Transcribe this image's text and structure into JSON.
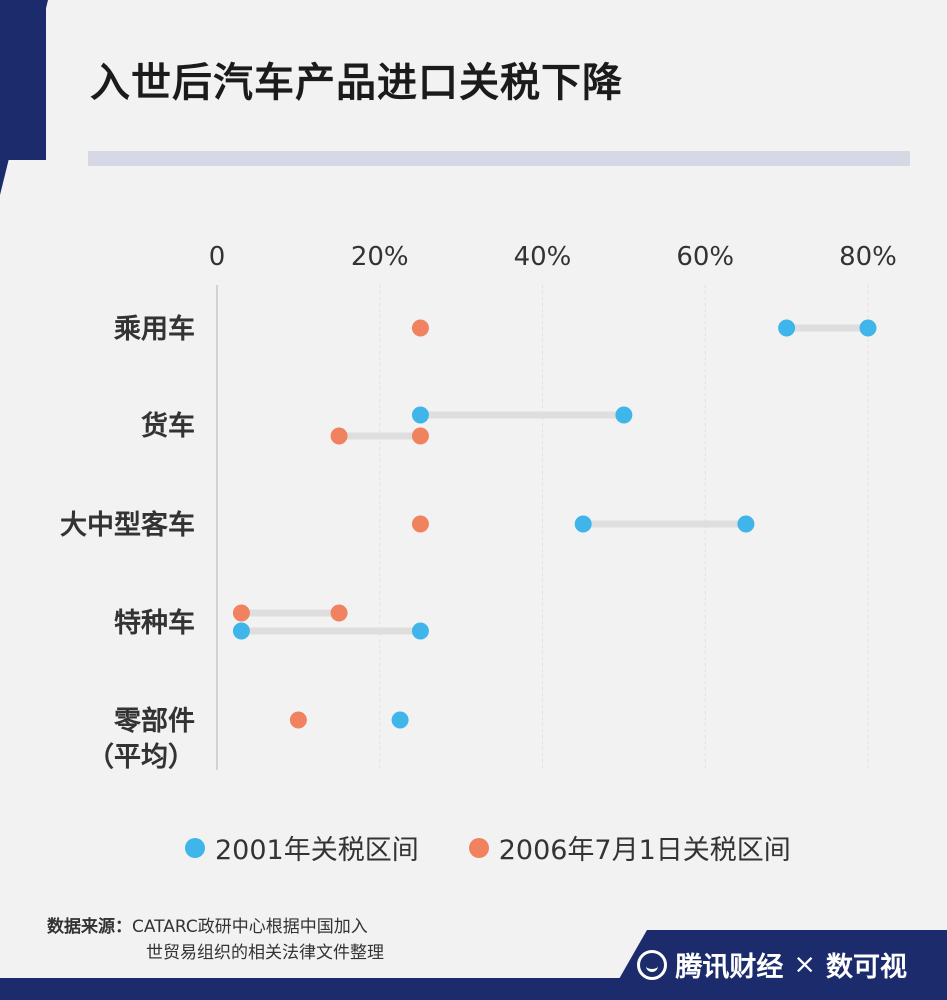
{
  "header": {
    "title": "入世后汽车产品进口关税下降"
  },
  "chart_data": {
    "type": "dumbbell",
    "title": "入世后汽车产品进口关税下降",
    "x_ticks": [
      "0",
      "20%",
      "40%",
      "60%",
      "80%"
    ],
    "xlim": [
      0,
      85
    ],
    "categories": [
      "乘用车",
      "货车",
      "大中型客车",
      "特种车",
      "零部件\n（平均）"
    ],
    "series": [
      {
        "name": "2001年关税区间",
        "color": "#3fb5ea",
        "ranges": [
          [
            70,
            80
          ],
          [
            25,
            50
          ],
          [
            45,
            65
          ],
          [
            3,
            25
          ],
          [
            22.5,
            22.5
          ]
        ]
      },
      {
        "name": "2006年7月1日关税区间",
        "color": "#f0825f",
        "ranges": [
          [
            25,
            25
          ],
          [
            15,
            25
          ],
          [
            25,
            25
          ],
          [
            3,
            15
          ],
          [
            10,
            10
          ]
        ]
      }
    ],
    "legend_position": "bottom"
  },
  "legend": {
    "items": [
      {
        "label": "2001年关税区间",
        "color": "#3fb5ea"
      },
      {
        "label": "2006年7月1日关税区间",
        "color": "#f0825f"
      }
    ]
  },
  "source": {
    "label": "数据来源：",
    "line1": "CATARC政研中心根据中国加入",
    "line2": "世贸易组织的相关法律文件整理"
  },
  "brand": {
    "name": "腾讯财经",
    "separator": "×",
    "partner": "数可视"
  }
}
